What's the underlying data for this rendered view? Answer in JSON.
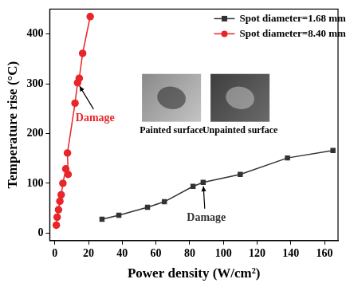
{
  "chart_data": {
    "type": "line",
    "x_label": "Power density (W/cm²)",
    "y_label": "Temperature rise (°C)",
    "xlim": [
      -3,
      168
    ],
    "ylim": [
      -15,
      450
    ],
    "xticks": [
      0,
      20,
      40,
      60,
      80,
      100,
      120,
      140,
      160
    ],
    "yticks": [
      0,
      100,
      200,
      300,
      400
    ],
    "grid": false,
    "legend": "upper right",
    "series": [
      {
        "name": "Spot diameter=1.68 mm",
        "color": "#333333",
        "marker": "square",
        "x": [
          28,
          38,
          55,
          65,
          82,
          88,
          110,
          138,
          165
        ],
        "values": [
          28,
          36,
          52,
          63,
          94,
          102,
          118,
          151,
          166
        ]
      },
      {
        "name": "Spot diameter=8.40 mm",
        "color": "#e8262a",
        "marker": "circle",
        "x": [
          0.9,
          1.4,
          2.2,
          3,
          3.8,
          4.8,
          6.5,
          7.9,
          7.5,
          12,
          13.5,
          14.5,
          16.5,
          21
        ],
        "values": [
          16,
          32,
          47,
          64,
          77,
          100,
          129,
          118,
          161,
          261,
          302,
          311,
          361,
          435
        ]
      }
    ],
    "annotations": [
      {
        "text": "Damage",
        "x": 13.5,
        "y": 302,
        "color": "#e8262a"
      },
      {
        "text": "Damage",
        "x": 88,
        "y": 102,
        "color": "#333333"
      }
    ],
    "insets": [
      "Painted surface",
      "Unpainted surface"
    ]
  }
}
